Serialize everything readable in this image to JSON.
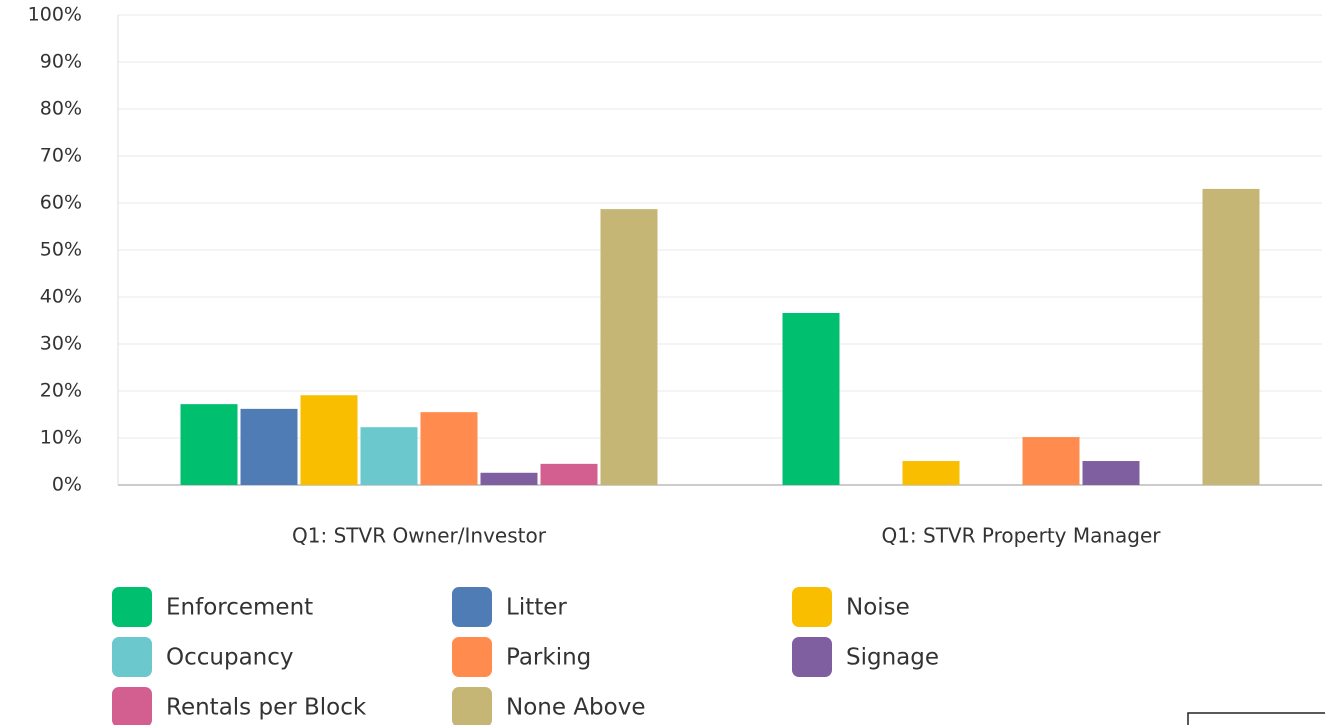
{
  "chart_data": {
    "type": "bar",
    "categories": [
      "Q1: STVR Owner/Investor",
      "Q1: STVR Property Manager"
    ],
    "series": [
      {
        "name": "Enforcement",
        "color": "#00bf6f",
        "values": [
          17.2,
          36.6
        ]
      },
      {
        "name": "Litter",
        "color": "#507cb6",
        "values": [
          16.2,
          0
        ]
      },
      {
        "name": "Noise",
        "color": "#f9be00",
        "values": [
          19.1,
          5.1
        ]
      },
      {
        "name": "Occupancy",
        "color": "#6bc8cd",
        "values": [
          12.3,
          0
        ]
      },
      {
        "name": "Parking",
        "color": "#ff8b4f",
        "values": [
          15.5,
          10.2
        ]
      },
      {
        "name": "Signage",
        "color": "#7f5fa0",
        "values": [
          2.6,
          5.1
        ]
      },
      {
        "name": "Rentals per Block",
        "color": "#d25f90",
        "values": [
          4.5,
          0
        ]
      },
      {
        "name": "None Above",
        "color": "#c5b675",
        "values": [
          58.7,
          63
        ]
      }
    ],
    "ylim": [
      0,
      100
    ],
    "yticks": [
      {
        "value": 0,
        "label": "0%"
      },
      {
        "value": 10,
        "label": "10%"
      },
      {
        "value": 20,
        "label": "20%"
      },
      {
        "value": 30,
        "label": "30%"
      },
      {
        "value": 40,
        "label": "40%"
      },
      {
        "value": 50,
        "label": "50%"
      },
      {
        "value": 60,
        "label": "60%"
      },
      {
        "value": 70,
        "label": "70%"
      },
      {
        "value": 80,
        "label": "80%"
      },
      {
        "value": 90,
        "label": "90%"
      },
      {
        "value": 100,
        "label": "100%"
      }
    ],
    "grid": true,
    "legend": "bottom"
  }
}
